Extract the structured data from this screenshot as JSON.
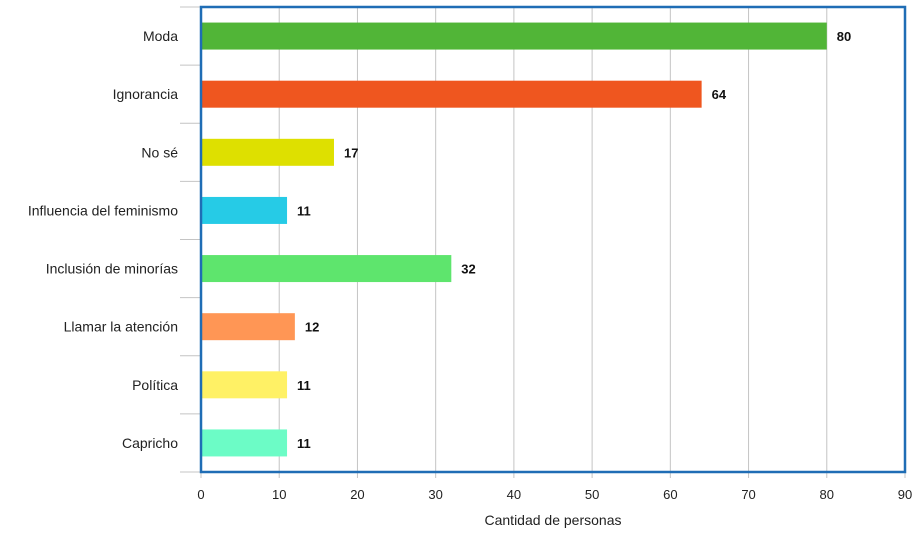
{
  "chart_data": {
    "type": "bar",
    "orientation": "horizontal",
    "title": "",
    "xlabel": "Cantidad de personas",
    "ylabel": "",
    "xlim": [
      0,
      90
    ],
    "x_ticks": [
      0,
      10,
      20,
      30,
      40,
      50,
      60,
      70,
      80,
      90
    ],
    "grid": true,
    "legend": "none",
    "categories": [
      "Moda",
      "Ignorancia",
      "No sé",
      "Influencia del feminismo",
      "Inclusión de minorías",
      "Llamar la atención",
      "Política",
      "Capricho"
    ],
    "values": [
      80,
      64,
      17,
      11,
      32,
      12,
      11,
      11
    ],
    "colors": [
      "#51b537",
      "#ef561f",
      "#dee000",
      "#26cbe6",
      "#5ee56d",
      "#ff9655",
      "#fff165",
      "#6cfcc6"
    ],
    "frame_color": "#1f6db5"
  }
}
